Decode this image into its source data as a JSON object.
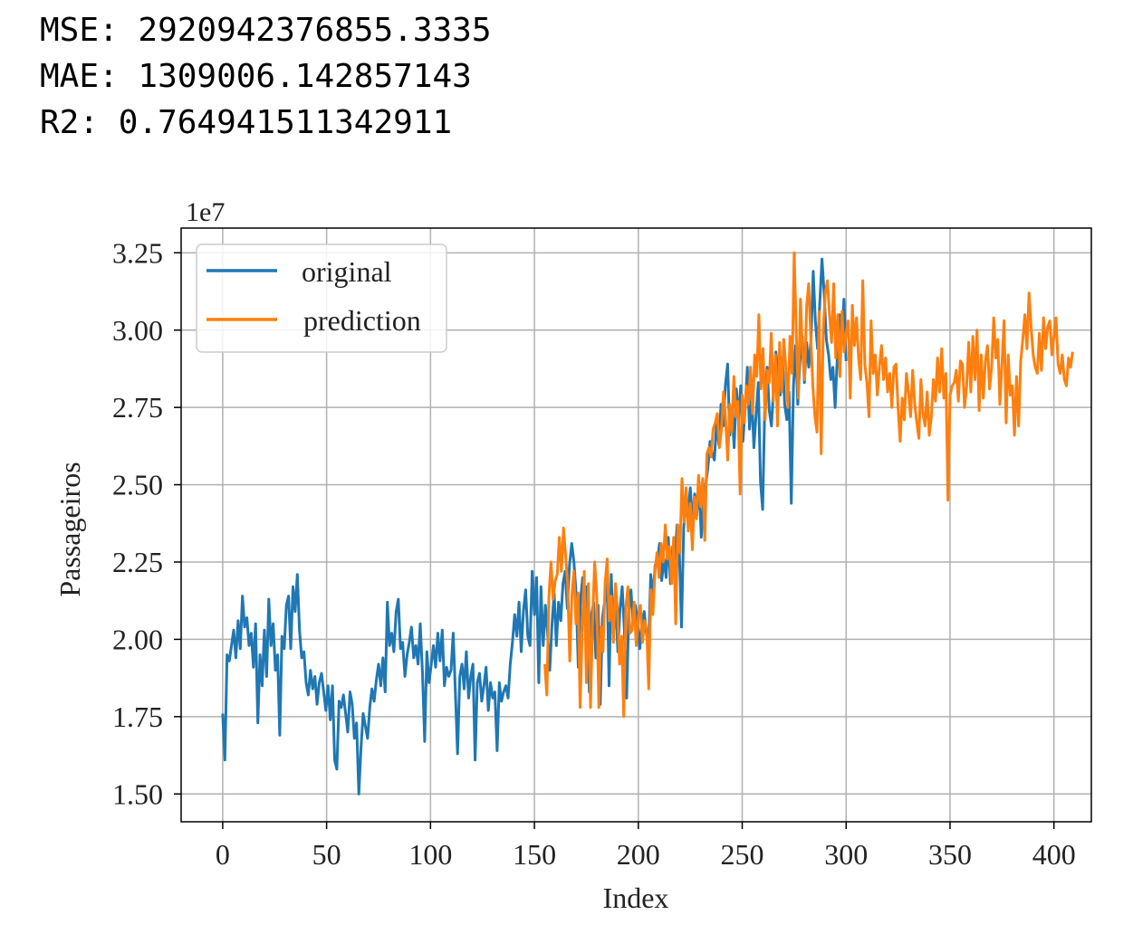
{
  "metrics": [
    {
      "label": "MSE:",
      "value": "2920942376855.3335"
    },
    {
      "label": "MAE:",
      "value": "1309006.142857143"
    },
    {
      "label": "R2:",
      "value": "0.764941511342911"
    }
  ],
  "chart_data": {
    "type": "line",
    "xlabel": "Index",
    "ylabel": "Passageiros",
    "offset_label": "1e7",
    "xlim": [
      -20,
      418
    ],
    "ylim": [
      1.41,
      3.33
    ],
    "xticks": [
      0,
      50,
      100,
      150,
      200,
      250,
      300,
      350,
      400
    ],
    "yticks": [
      1.5,
      1.75,
      2.0,
      2.25,
      2.5,
      2.75,
      3.0,
      3.25
    ],
    "grid": true,
    "legend_position": "top-left",
    "series": [
      {
        "name": "original",
        "color": "#1f77b4",
        "x_start": 0,
        "values": [
          1.76,
          1.61,
          1.95,
          1.93,
          1.98,
          2.03,
          1.94,
          2.06,
          1.97,
          2.14,
          2.04,
          2.07,
          1.98,
          2.02,
          1.91,
          2.05,
          1.73,
          1.95,
          1.85,
          2.03,
          1.88,
          2.13,
          1.98,
          2.05,
          1.9,
          1.95,
          1.69,
          2.01,
          1.97,
          2.11,
          2.14,
          1.97,
          2.17,
          2.09,
          2.21,
          2.03,
          1.94,
          1.96,
          1.86,
          1.82,
          1.9,
          1.84,
          1.88,
          1.79,
          1.86,
          1.89,
          1.83,
          1.77,
          1.85,
          1.74,
          1.85,
          1.61,
          1.58,
          1.8,
          1.78,
          1.82,
          1.76,
          1.7,
          1.83,
          1.79,
          1.68,
          1.73,
          1.5,
          1.65,
          1.76,
          1.72,
          1.68,
          1.78,
          1.84,
          1.8,
          1.87,
          1.92,
          1.85,
          1.94,
          1.83,
          2.12,
          1.98,
          2.02,
          1.96,
          2.09,
          2.13,
          1.97,
          1.99,
          1.88,
          1.95,
          1.99,
          2.04,
          1.94,
          1.98,
          1.92,
          2.05,
          1.89,
          1.67,
          1.96,
          1.86,
          1.92,
          1.98,
          1.91,
          2.02,
          1.93,
          2.03,
          1.85,
          1.91,
          1.88,
          1.9,
          2.02,
          1.83,
          1.63,
          1.88,
          1.92,
          1.84,
          1.96,
          1.81,
          1.88,
          1.92,
          1.61,
          1.86,
          1.89,
          1.8,
          1.85,
          1.91,
          1.77,
          1.86,
          1.81,
          1.83,
          1.64,
          1.86,
          1.8,
          1.83,
          1.85,
          1.81,
          1.92,
          1.99,
          2.08,
          2.01,
          2.12,
          1.96,
          2.09,
          2.16,
          2.01,
          1.98,
          2.22,
          2.08,
          2.2,
          1.86,
          2.17,
          1.98,
          2.11,
          2.02,
          1.9,
          2.05,
          2.15,
          1.98,
          2.12,
          2.06,
          2.18,
          2.22,
          2.1,
          2.24,
          2.31,
          2.25,
          2.15,
          1.91,
          2.13,
          2.2,
          2.07,
          2.17,
          1.83,
          2.08,
          2.12,
          1.94,
          2.11,
          1.79,
          2.07,
          2.12,
          2.23,
          1.85,
          2.21,
          2.02,
          2.13,
          1.96,
          2.1,
          2.17,
          2.03,
          1.81,
          2.09,
          2.16,
          2.05,
          2.11,
          2.06,
          1.97,
          2.05,
          2.09,
          2.02,
          1.97,
          2.21,
          2.14,
          2.24,
          2.25,
          2.31,
          2.19,
          2.26,
          2.2,
          2.33,
          2.18,
          2.3,
          2.26,
          2.37,
          2.29,
          2.04,
          2.36,
          2.45,
          2.41,
          2.49,
          2.38,
          2.47,
          2.4,
          2.51,
          2.33,
          2.44,
          2.5,
          2.55,
          2.64,
          2.6,
          2.58,
          2.7,
          2.63,
          2.76,
          2.69,
          2.82,
          2.89,
          2.66,
          2.74,
          2.62,
          2.81,
          2.71,
          2.82,
          2.64,
          2.75,
          2.88,
          2.68,
          2.79,
          2.62,
          2.73,
          2.83,
          2.51,
          2.42,
          2.78,
          2.88,
          2.74,
          2.69,
          2.82,
          2.93,
          2.86,
          2.79,
          2.91,
          2.76,
          2.71,
          2.8,
          2.44,
          2.82,
          2.95,
          2.76,
          2.9,
          2.98,
          2.83,
          2.96,
          2.88,
          2.97,
          3.19,
          3.03,
          2.94,
          3.09,
          3.23,
          3.12,
          2.97,
          2.92,
          2.84,
          2.88,
          2.75,
          2.92,
          3.05,
          2.96,
          3.1,
          2.9
        ],
        "x_end": 300
      },
      {
        "name": "prediction",
        "color": "#ff7f0e",
        "x_start": 155,
        "values": [
          1.92,
          1.82,
          2.14,
          2.25,
          2.13,
          2.19,
          2.21,
          2.33,
          2.22,
          2.36,
          2.27,
          2.18,
          1.93,
          2.14,
          2.22,
          2.05,
          2.15,
          1.78,
          2.02,
          2.22,
          1.86,
          2.18,
          1.78,
          2.06,
          2.25,
          2.14,
          1.78,
          2.04,
          1.96,
          2.18,
          2.26,
          2.06,
          2.14,
          1.99,
          2.18,
          2.09,
          1.92,
          2.01,
          1.75,
          2.1,
          2.17,
          2.02,
          2.03,
          2.12,
          1.98,
          2.07,
          2.11,
          1.99,
          2.06,
          2.03,
          1.84,
          2.16,
          2.08,
          2.22,
          2.28,
          2.2,
          2.31,
          2.25,
          2.37,
          2.26,
          2.3,
          2.18,
          2.33,
          2.05,
          2.37,
          2.28,
          2.52,
          2.38,
          2.49,
          2.35,
          2.44,
          2.29,
          2.46,
          2.39,
          2.53,
          2.43,
          2.52,
          2.32,
          2.6,
          2.62,
          2.59,
          2.68,
          2.7,
          2.73,
          2.62,
          2.68,
          2.8,
          2.71,
          2.58,
          2.76,
          2.67,
          2.85,
          2.72,
          2.77,
          2.47,
          2.79,
          2.7,
          2.82,
          2.76,
          2.88,
          2.73,
          2.92,
          2.85,
          3.05,
          2.81,
          2.94,
          2.71,
          2.87,
          2.83,
          2.99,
          2.77,
          2.92,
          2.69,
          2.96,
          2.8,
          2.97,
          2.88,
          2.75,
          2.98,
          2.86,
          3.25,
          2.99,
          2.78,
          3.1,
          2.93,
          2.84,
          3.08,
          3.15,
          2.98,
          2.82,
          2.72,
          2.67,
          3.06,
          2.6,
          3.0,
          3.12,
          3.16,
          3.05,
          2.96,
          3.15,
          2.91,
          3.05,
          2.85,
          3.06,
          2.93,
          2.99,
          3.03,
          2.78,
          3.08,
          2.95,
          3.04,
          2.91,
          2.84,
          3.16,
          2.89,
          2.83,
          2.72,
          3.03,
          2.86,
          2.92,
          2.79,
          2.88,
          2.95,
          2.84,
          2.91,
          2.8,
          2.86,
          2.75,
          2.88,
          2.89,
          2.75,
          2.64,
          2.78,
          2.71,
          2.86,
          2.8,
          2.72,
          2.87,
          2.76,
          2.7,
          2.65,
          2.84,
          2.73,
          2.69,
          2.8,
          2.66,
          2.72,
          2.84,
          2.77,
          2.91,
          2.8,
          2.94,
          2.78,
          2.86,
          2.45,
          2.79,
          2.82,
          2.83,
          2.87,
          2.77,
          2.9,
          2.89,
          2.75,
          2.82,
          2.96,
          2.8,
          2.98,
          2.84,
          3.0,
          2.74,
          2.92,
          2.78,
          2.9,
          2.95,
          2.81,
          2.88,
          3.04,
          2.91,
          2.97,
          2.76,
          2.89,
          3.03,
          2.7,
          2.92,
          2.79,
          2.82,
          2.66,
          2.85,
          2.69,
          2.9,
          2.97,
          3.05,
          2.94,
          3.12,
          3.01,
          2.92,
          2.88,
          2.86,
          2.99,
          2.87,
          3.04,
          2.94,
          3.01,
          3.03,
          2.92,
          2.98,
          3.04,
          2.89,
          2.86,
          2.92,
          2.84,
          2.82,
          2.91,
          2.88,
          2.93
        ]
      }
    ]
  }
}
